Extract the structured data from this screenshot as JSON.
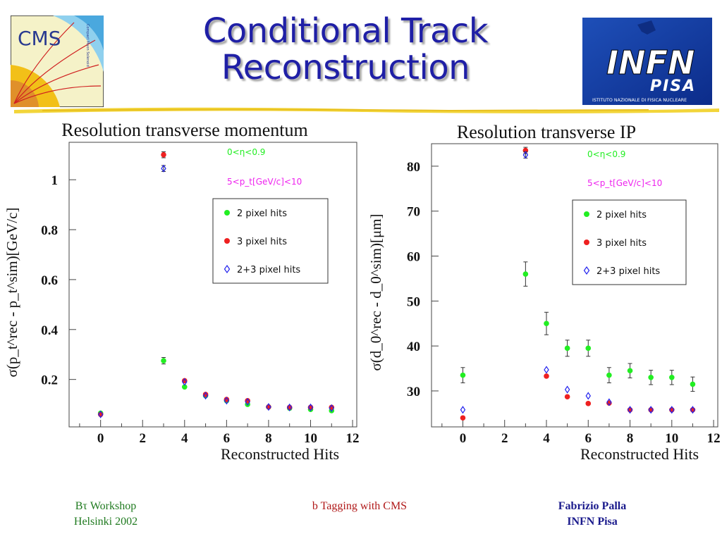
{
  "slide": {
    "title": "Conditional Track\nReconstruction"
  },
  "logos": {
    "cms_text": "CMS",
    "cms_subtext": "Compact Muon Solenoid",
    "infn_text": "INFN",
    "infn_city": "PISA",
    "infn_caption": "ISTITUTO NAZIONALE DI FISICA NUCLEARE"
  },
  "footer": {
    "left_line1": "Bτ Workshop",
    "left_line2": "Helsinki 2002",
    "center": "b Tagging with CMS",
    "right_line1": "Fabrizio Palla",
    "right_line2": "INFN Pisa"
  },
  "colors": {
    "title": "#1f1fa6",
    "two_pixel": "#22ee22",
    "three_pixel": "#ee2020",
    "two_plus_three": "#2222ee",
    "eta_label": "#22ee22",
    "pt_label": "#ee22ee"
  },
  "chart_data": [
    {
      "type": "scatter",
      "title": "Resolution transverse momentum",
      "xlabel": "Reconstructed Hits",
      "ylabel": "σ(p_t^rec - p_t^sim)[GeV/c]",
      "xlim": [
        -1.5,
        12.2
      ],
      "ylim": [
        0.01,
        1.15
      ],
      "xticks": [
        "0",
        "2",
        "4",
        "6",
        "8",
        "10",
        "12"
      ],
      "yticks": [
        "0.2",
        "0.4",
        "0.6",
        "0.8",
        "1"
      ],
      "cut_labels": [
        "0<η<0.9",
        "5<p_t[GeV/c]<10"
      ],
      "legend_position": "right-middle",
      "series": [
        {
          "name": "2 pixel hits",
          "marker": "circle",
          "color": "#22ee22",
          "x": [
            0,
            3,
            4,
            5,
            6,
            7,
            8,
            9,
            10,
            11
          ],
          "y": [
            0.065,
            0.275,
            0.17,
            0.135,
            0.115,
            0.1,
            0.09,
            0.085,
            0.08,
            0.075
          ],
          "err": [
            0,
            0.013,
            0,
            0,
            0,
            0,
            0,
            0,
            0,
            0
          ]
        },
        {
          "name": "3 pixel hits",
          "marker": "circle",
          "color": "#ee2020",
          "x": [
            0,
            3,
            4,
            5,
            6,
            7,
            8,
            9,
            10,
            11
          ],
          "y": [
            0.06,
            1.1,
            0.195,
            0.14,
            0.12,
            0.115,
            0.09,
            0.088,
            0.088,
            0.088
          ],
          "err": [
            0,
            0.012,
            0,
            0,
            0,
            0,
            0,
            0,
            0,
            0
          ]
        },
        {
          "name": "2+3 pixel hits",
          "marker": "diamond",
          "color": "#2222ee",
          "x": [
            0,
            3,
            4,
            5,
            6,
            7,
            8,
            9,
            10,
            11
          ],
          "y": [
            0.06,
            1.045,
            0.19,
            0.135,
            0.115,
            0.11,
            0.09,
            0.088,
            0.088,
            0.085
          ],
          "err": [
            0,
            0.012,
            0,
            0,
            0,
            0,
            0,
            0,
            0,
            0
          ]
        }
      ]
    },
    {
      "type": "scatter",
      "title": "Resolution transverse IP",
      "xlabel": "Reconstructed Hits",
      "ylabel": "σ(d_0^rec - d_0^sim)[μm]",
      "xlim": [
        -1.5,
        12.2
      ],
      "ylim": [
        22,
        85
      ],
      "xticks": [
        "0",
        "2",
        "4",
        "6",
        "8",
        "10",
        "12"
      ],
      "yticks": [
        "30",
        "40",
        "50",
        "60",
        "70",
        "80"
      ],
      "cut_labels": [
        "0<η<0.9",
        "5<p_t[GeV/c]<10"
      ],
      "legend_position": "right-middle",
      "series": [
        {
          "name": "2 pixel hits",
          "marker": "circle",
          "color": "#22ee22",
          "x": [
            0,
            3,
            4,
            5,
            6,
            7,
            8,
            9,
            10,
            11
          ],
          "y": [
            33.5,
            56,
            45,
            39.5,
            39.5,
            33.5,
            34.5,
            33,
            33,
            31.5
          ],
          "err": [
            1.7,
            2.7,
            2.5,
            1.8,
            1.8,
            1.7,
            1.6,
            1.6,
            1.6,
            1.6
          ]
        },
        {
          "name": "3 pixel hits",
          "marker": "circle",
          "color": "#ee2020",
          "x": [
            0,
            3,
            4,
            5,
            6,
            7,
            8,
            9,
            10,
            11
          ],
          "y": [
            24,
            83.5,
            33.3,
            28.7,
            27.2,
            27.3,
            25.8,
            25.8,
            25.8,
            25.8
          ],
          "err": [
            0,
            0.7,
            0,
            0,
            0,
            0,
            0,
            0,
            0,
            0
          ]
        },
        {
          "name": "2+3 pixel hits",
          "marker": "diamond",
          "color": "#2222ee",
          "x": [
            0,
            3,
            4,
            5,
            6,
            7,
            8,
            9,
            10,
            11
          ],
          "y": [
            25.8,
            82.5,
            34.7,
            30.3,
            28.9,
            27.5,
            25.8,
            25.8,
            25.8,
            25.8
          ],
          "err": [
            0,
            0.7,
            0,
            0,
            0,
            0,
            0,
            0,
            0,
            0
          ]
        }
      ]
    }
  ]
}
